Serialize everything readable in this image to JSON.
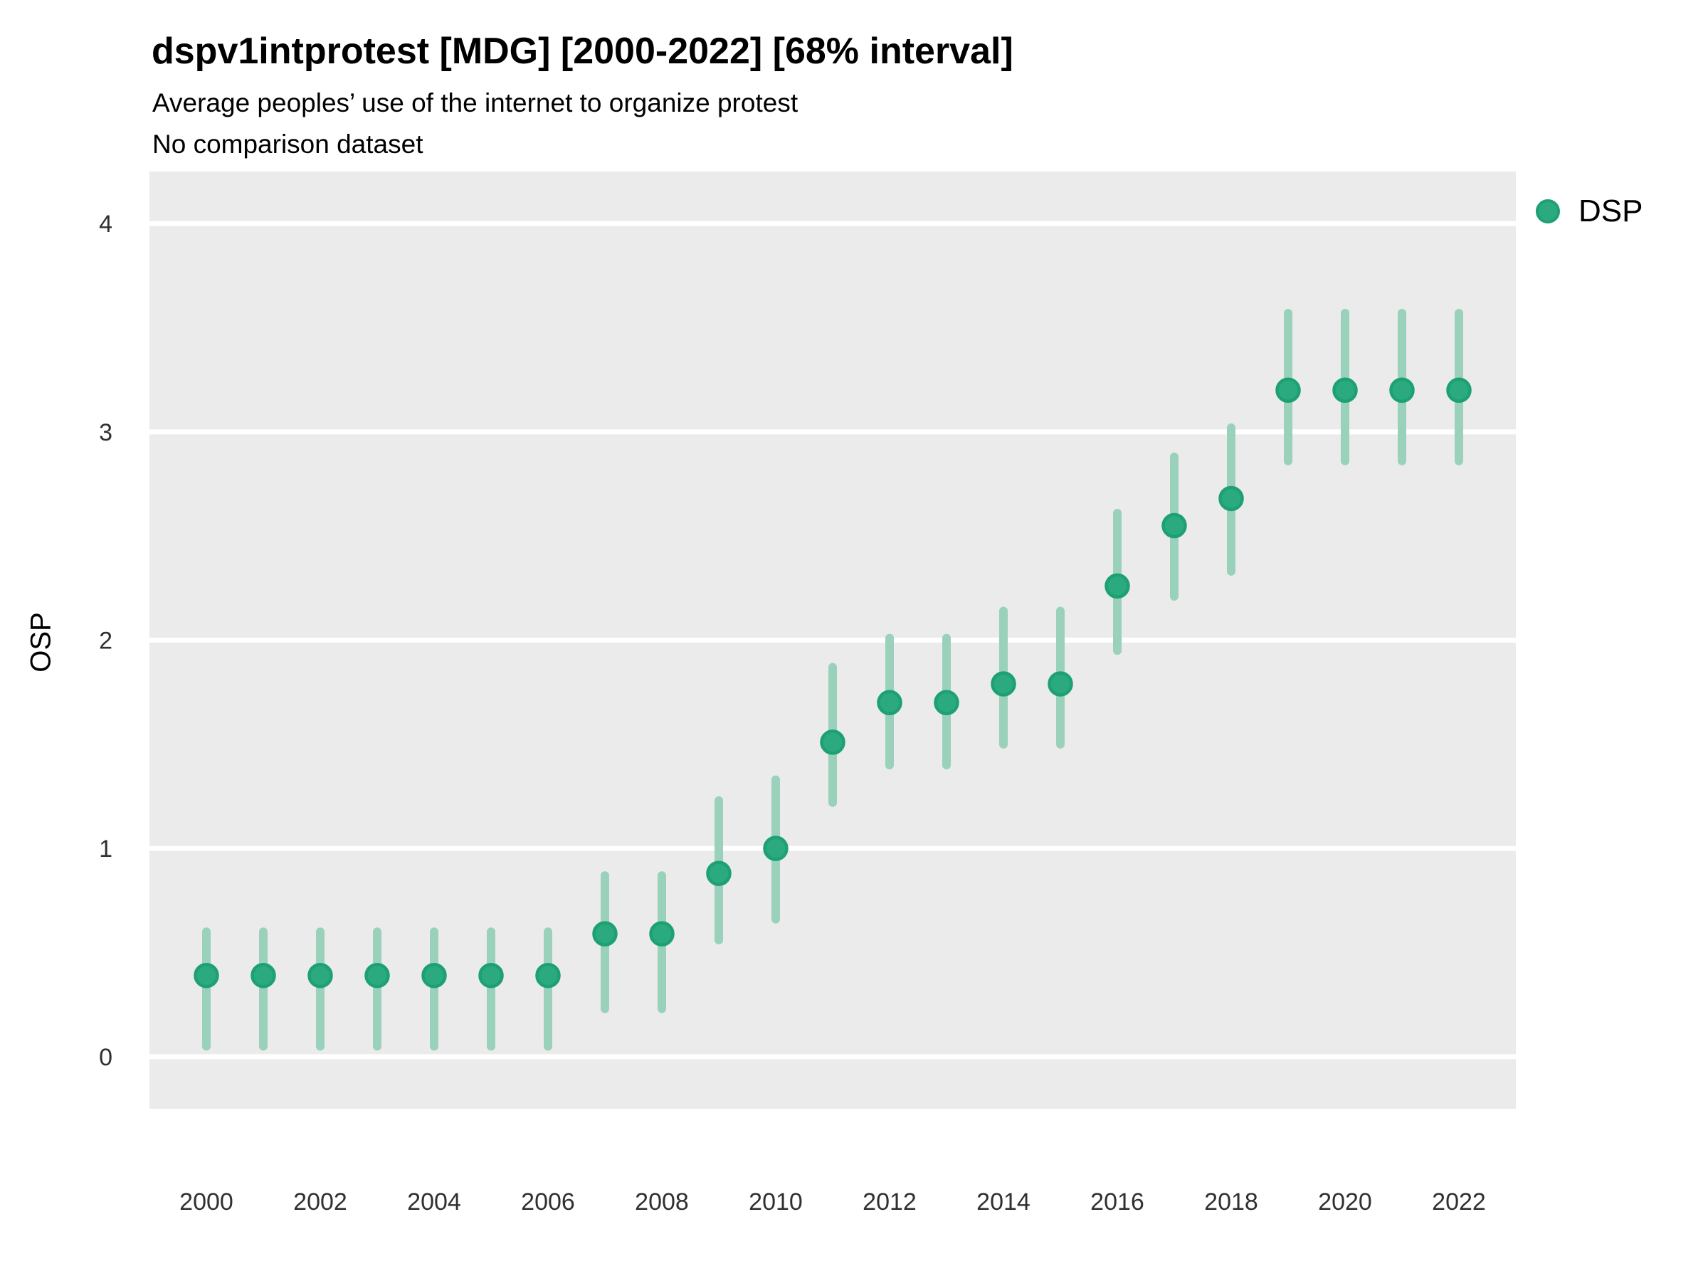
{
  "header": {
    "title": "dspv1intprotest [MDG] [2000-2022] [68% interval]",
    "subtitle": "Average peoples’ use of the internet to organize protest",
    "note": "No comparison dataset"
  },
  "legend": {
    "items": [
      {
        "label": "DSP",
        "color": "#2baa80",
        "border": "#1da074",
        "shape": "circle"
      }
    ],
    "position": "right-top"
  },
  "colors": {
    "panel_background": "#ebebeb",
    "gridline": "#ffffff",
    "error_bar": "#9ad1ba",
    "point_fill": "#2baa80",
    "point_stroke": "#1da074",
    "tick_text": "#303030",
    "page_background": "#ffffff"
  },
  "chart_data": {
    "type": "scatter",
    "title": "dspv1intprotest [MDG] [2000-2022] [68% interval]",
    "subtitle": "Average peoples’ use of the internet to organize protest",
    "note": "No comparison dataset",
    "xlabel": "",
    "ylabel": "OSP",
    "interval": "68%",
    "legend_position": "right",
    "grid": "horizontal-major-only",
    "xlim": [
      1999,
      2023
    ],
    "ylim": [
      -0.25,
      4.25
    ],
    "x_ticks": [
      2000,
      2002,
      2004,
      2006,
      2008,
      2010,
      2012,
      2014,
      2016,
      2018,
      2020,
      2022
    ],
    "y_ticks": [
      0,
      1,
      2,
      3,
      4
    ],
    "series": [
      {
        "name": "DSP",
        "points": [
          {
            "year": 2000,
            "est": 0.39,
            "lo": 0.05,
            "hi": 0.6
          },
          {
            "year": 2001,
            "est": 0.39,
            "lo": 0.05,
            "hi": 0.6
          },
          {
            "year": 2002,
            "est": 0.39,
            "lo": 0.05,
            "hi": 0.6
          },
          {
            "year": 2003,
            "est": 0.39,
            "lo": 0.05,
            "hi": 0.6
          },
          {
            "year": 2004,
            "est": 0.39,
            "lo": 0.05,
            "hi": 0.6
          },
          {
            "year": 2005,
            "est": 0.39,
            "lo": 0.05,
            "hi": 0.6
          },
          {
            "year": 2006,
            "est": 0.39,
            "lo": 0.05,
            "hi": 0.6
          },
          {
            "year": 2007,
            "est": 0.59,
            "lo": 0.23,
            "hi": 0.87
          },
          {
            "year": 2008,
            "est": 0.59,
            "lo": 0.23,
            "hi": 0.87
          },
          {
            "year": 2009,
            "est": 0.88,
            "lo": 0.56,
            "hi": 1.23
          },
          {
            "year": 2010,
            "est": 1.0,
            "lo": 0.66,
            "hi": 1.33
          },
          {
            "year": 2011,
            "est": 1.51,
            "lo": 1.22,
            "hi": 1.87
          },
          {
            "year": 2012,
            "est": 1.7,
            "lo": 1.4,
            "hi": 2.01
          },
          {
            "year": 2013,
            "est": 1.7,
            "lo": 1.4,
            "hi": 2.01
          },
          {
            "year": 2014,
            "est": 1.79,
            "lo": 1.5,
            "hi": 2.14
          },
          {
            "year": 2015,
            "est": 1.79,
            "lo": 1.5,
            "hi": 2.14
          },
          {
            "year": 2016,
            "est": 2.26,
            "lo": 1.95,
            "hi": 2.61
          },
          {
            "year": 2017,
            "est": 2.55,
            "lo": 2.21,
            "hi": 2.88
          },
          {
            "year": 2018,
            "est": 2.68,
            "lo": 2.33,
            "hi": 3.02
          },
          {
            "year": 2019,
            "est": 3.2,
            "lo": 2.86,
            "hi": 3.57
          },
          {
            "year": 2020,
            "est": 3.2,
            "lo": 2.86,
            "hi": 3.57
          },
          {
            "year": 2021,
            "est": 3.2,
            "lo": 2.86,
            "hi": 3.57
          },
          {
            "year": 2022,
            "est": 3.2,
            "lo": 2.86,
            "hi": 3.57
          }
        ]
      }
    ]
  }
}
